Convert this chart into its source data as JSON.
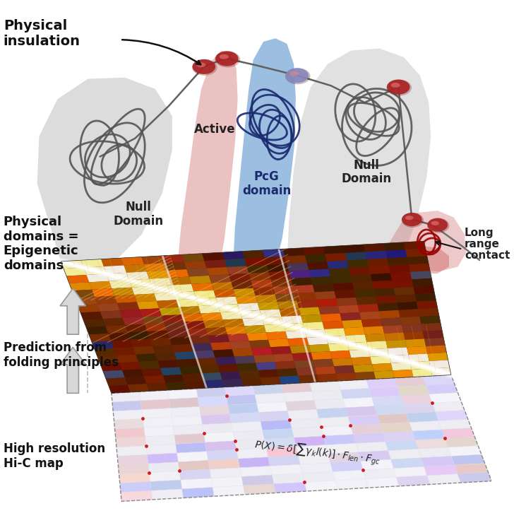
{
  "background_color": "#ffffff",
  "labels": {
    "physical_insulation": "Physical\ninsulation",
    "active": "Active",
    "null_domain_left": "Null\nDomain",
    "pcg_domain": "PcG\ndomain",
    "null_domain_right": "Null\nDomain",
    "long_range_contact": "Long\nrange\ncontact",
    "physical_domains": "Physical\ndomains =\nEpigenetic\ndomains",
    "prediction": "Prediction from\nfolding principles",
    "hic_map": "High resolution\nHi-C map"
  },
  "colors": {
    "gray_domain": "#c0c0c0",
    "red_active": "#cc3333",
    "pink_active_blob": "#e08080",
    "blue_pcg": "#6699cc",
    "light_blue_pcg": "#aac4e8",
    "light_red": "#e8b0b0",
    "dark_red_bead": "#aa2222",
    "gray_null": "#c8c8c8",
    "gray_line": "#606060",
    "arrow_gray": "#c0c0c0",
    "hic_brown": "#7a2e00",
    "hic_orange": "#cc5500",
    "hic_yellow": "#ffcc00"
  }
}
